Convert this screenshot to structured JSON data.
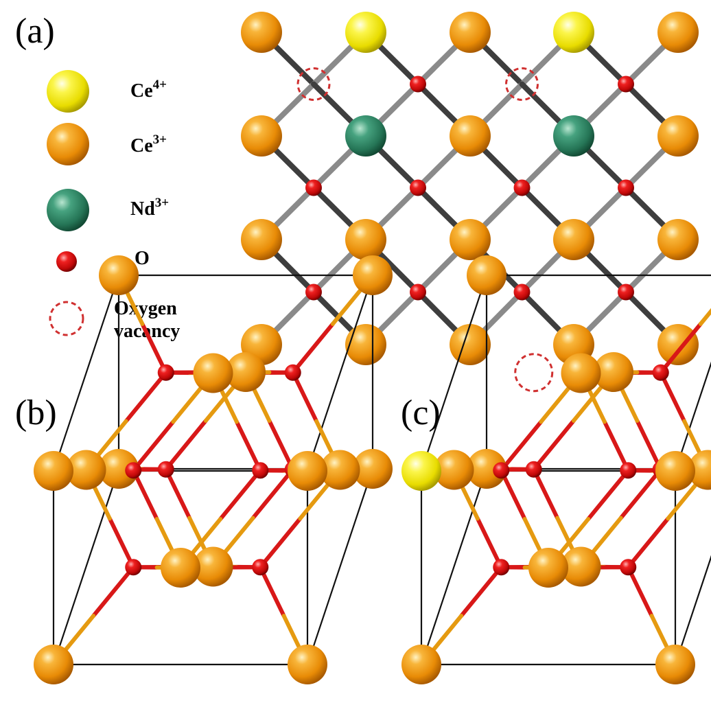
{
  "panels": {
    "a": {
      "label": "(a)"
    },
    "b": {
      "label": "(b)"
    },
    "c": {
      "label": "(c)"
    }
  },
  "legend": [
    {
      "key": "ce4",
      "base": "Ce",
      "sup": "4+",
      "color": "#f6ee10"
    },
    {
      "key": "ce3",
      "base": "Ce",
      "sup": "3+",
      "color": "#f29a0c"
    },
    {
      "key": "nd3",
      "base": "Nd",
      "sup": "3+",
      "color": "#2e8b67"
    },
    {
      "key": "o",
      "base": "O",
      "sup": "",
      "color": "#e01010"
    },
    {
      "key": "vacancy",
      "line1": "Oxygen",
      "line2": "vacancy",
      "color": "#d03030"
    }
  ],
  "colors": {
    "ce3": "#f29a0c",
    "ce4": "#f6ee10",
    "nd": "#2e8b67",
    "oxygen": "#dd1111",
    "bond_grey": "#8a8a8a",
    "bond_dark": "#3e3e3e",
    "bond_red": "#d81818",
    "bond_orange": "#e59a10",
    "bond_green": "#2e8b67",
    "cell_edge": "#111111",
    "vacancy": "#d03030"
  }
}
